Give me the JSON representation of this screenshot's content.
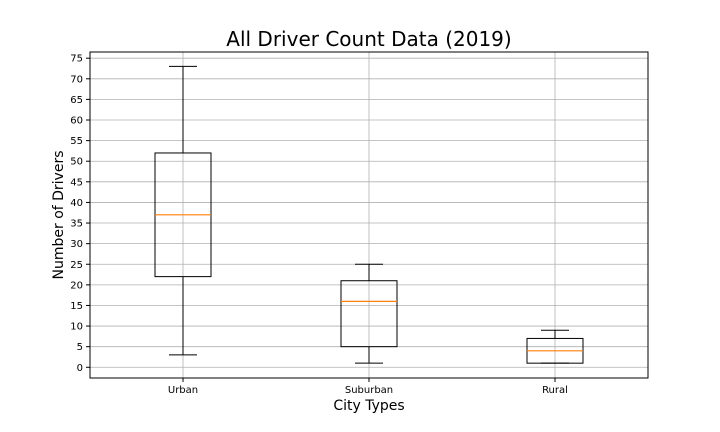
{
  "chart_data": {
    "type": "boxplot",
    "title": "All Driver Count Data (2019)",
    "xlabel": "City Types",
    "ylabel": "Number of Drivers",
    "ylim": [
      -2.6,
      76.5
    ],
    "yticks": [
      0,
      5,
      10,
      15,
      20,
      25,
      30,
      35,
      40,
      45,
      50,
      55,
      60,
      65,
      70,
      75
    ],
    "grid": true,
    "categories": [
      "Urban",
      "Suburban",
      "Rural"
    ],
    "series": [
      {
        "category": "Urban",
        "whisker_low": 3,
        "q1": 22,
        "median": 37,
        "q3": 52,
        "whisker_high": 73
      },
      {
        "category": "Suburban",
        "whisker_low": 1,
        "q1": 5,
        "median": 16,
        "q3": 21,
        "whisker_high": 25
      },
      {
        "category": "Rural",
        "whisker_low": 1,
        "q1": 1,
        "median": 4,
        "q3": 7,
        "whisker_high": 9
      }
    ],
    "colors": {
      "box": "#000000",
      "median": "#ff7f0e",
      "grid": "#b0b0b0"
    }
  }
}
